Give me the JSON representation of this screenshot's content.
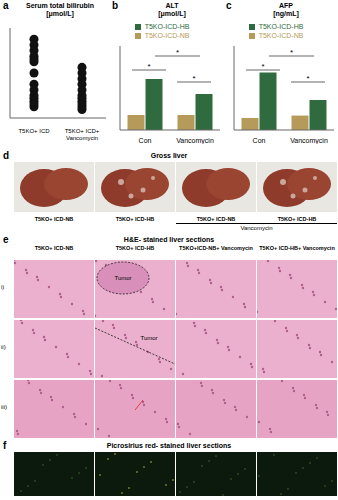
{
  "panel_letters": [
    "a",
    "b",
    "c"
  ],
  "chart_data": [
    {
      "type": "scatter",
      "title": "Serum total bilirubin",
      "subtitle": "[μmol/L]",
      "categories": [
        "T5KO+ ICD",
        "T5KO+ ICD+ Vancomycin"
      ],
      "values": [
        [
          14,
          13,
          12,
          11,
          10.5,
          10,
          8,
          6,
          5,
          4,
          3.5,
          3,
          2.5,
          2
        ],
        [
          9,
          8,
          7,
          6,
          5,
          4,
          3.5,
          3,
          2.5,
          2,
          1.5
        ]
      ],
      "color": "#111111",
      "ylim": [
        0,
        16
      ],
      "tick_labels": "x",
      "grid": false
    },
    {
      "type": "bar",
      "title": "ALT",
      "subtitle": "[μmol/L]",
      "categories": [
        "Con",
        "Vancomycin"
      ],
      "series": [
        {
          "name": "T5KO-ICD-NB",
          "color": "#b59a5a",
          "values": [
            25,
            25
          ]
        },
        {
          "name": "T5KO-ICD-HB",
          "color": "#2f6b3e",
          "values": [
            85,
            60
          ]
        }
      ],
      "ylim": [
        0,
        140
      ],
      "tick_labels": "x",
      "grid": false,
      "annotations": [
        "*",
        "*",
        "*"
      ]
    },
    {
      "type": "bar",
      "title": "AFP",
      "subtitle": "[ng/mL]",
      "categories": [
        "Con",
        "Vancomycin"
      ],
      "series": [
        {
          "name": "T5KO-ICD-NB",
          "color": "#b59a5a",
          "values": [
            100,
            120
          ]
        },
        {
          "name": "T5KO-ICD-HB",
          "color": "#2f6b3e",
          "values": [
            480,
            250
          ]
        }
      ],
      "ylim": [
        0,
        700
      ],
      "tick_labels": "x",
      "grid": false,
      "annotations": [
        "*",
        "*",
        "*"
      ]
    }
  ],
  "panel_d": {
    "letter": "d",
    "title": "Gross liver",
    "images": [
      "T5KO+ ICD-NB",
      "T5KO+ ICD-HB",
      "T5KO+ ICD-NB",
      "T5KO+ ICD-HB"
    ],
    "group_label": "Vancomycin"
  },
  "panel_e": {
    "letter": "e",
    "title": "H&E- stained liver sections",
    "columns": [
      "T5KO+ ICD-NB",
      "T5KO+ ICD-HB",
      "T5KO+ICD-NB+ Vancomycin",
      "T5KO+ ICD-HB+ Vancomycin"
    ],
    "rows": [
      "i)",
      "ii)",
      "iii)"
    ],
    "annotations": [
      "Tumor",
      "Tumor"
    ]
  },
  "panel_f": {
    "letter": "f",
    "title": "Picrosirius red- stained liver sections"
  }
}
